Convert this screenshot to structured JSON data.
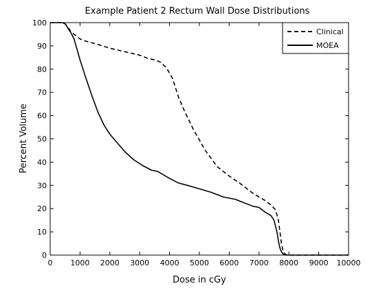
{
  "chart_data": {
    "type": "line",
    "title": "Example Patient 2 Rectum Wall Dose Distributions",
    "xlabel": "Dose in cGy",
    "ylabel": "Percent Volume",
    "xlim": [
      0,
      10000
    ],
    "ylim": [
      0,
      100
    ],
    "xticks": [
      0,
      1000,
      2000,
      3000,
      4000,
      5000,
      6000,
      7000,
      8000,
      9000,
      10000
    ],
    "yticks": [
      0,
      10,
      20,
      30,
      40,
      50,
      60,
      70,
      80,
      90,
      100
    ],
    "grid": false,
    "legend_position": "top-right",
    "series": [
      {
        "name": "Clinical",
        "line_style": "dashed",
        "color": "#000000",
        "x": [
          0,
          400,
          500,
          600,
          700,
          800,
          1000,
          1200,
          1500,
          2000,
          2500,
          3000,
          3300,
          3500,
          3700,
          3900,
          4100,
          4300,
          4500,
          4800,
          5200,
          5600,
          6000,
          6400,
          6800,
          7200,
          7400,
          7550,
          7650,
          7700,
          7750,
          7800,
          7850,
          7900,
          8000,
          10000
        ],
        "y": [
          100,
          100,
          99.5,
          98,
          96,
          95,
          93,
          92,
          91,
          89,
          87.5,
          86,
          84.5,
          84,
          83,
          80.5,
          76,
          68,
          62,
          54,
          45,
          38,
          34,
          30.5,
          26.5,
          23.5,
          21.5,
          19.5,
          15,
          10,
          5,
          2,
          0.7,
          0.2,
          0,
          0
        ]
      },
      {
        "name": "MOEA",
        "line_style": "solid",
        "color": "#000000",
        "x": [
          0,
          400,
          500,
          600,
          700,
          800,
          900,
          1000,
          1200,
          1400,
          1600,
          1800,
          2000,
          2200,
          2500,
          2800,
          3100,
          3400,
          3600,
          3800,
          4000,
          4300,
          4600,
          5000,
          5400,
          5800,
          6200,
          6500,
          6800,
          7000,
          7200,
          7400,
          7500,
          7600,
          7650,
          7700,
          7750,
          7800,
          7850,
          7900,
          8000,
          10000
        ],
        "y": [
          100,
          100,
          99.5,
          97.5,
          95.5,
          93,
          88.5,
          84,
          76,
          68.5,
          61.5,
          56,
          52,
          49,
          44.5,
          41,
          38.5,
          36.5,
          36,
          34.5,
          33,
          31,
          30,
          28.5,
          27,
          25,
          24,
          22.5,
          21,
          20.5,
          18.5,
          17,
          15,
          10,
          6,
          3,
          1.5,
          0.5,
          0.2,
          0,
          0,
          0
        ]
      }
    ]
  }
}
